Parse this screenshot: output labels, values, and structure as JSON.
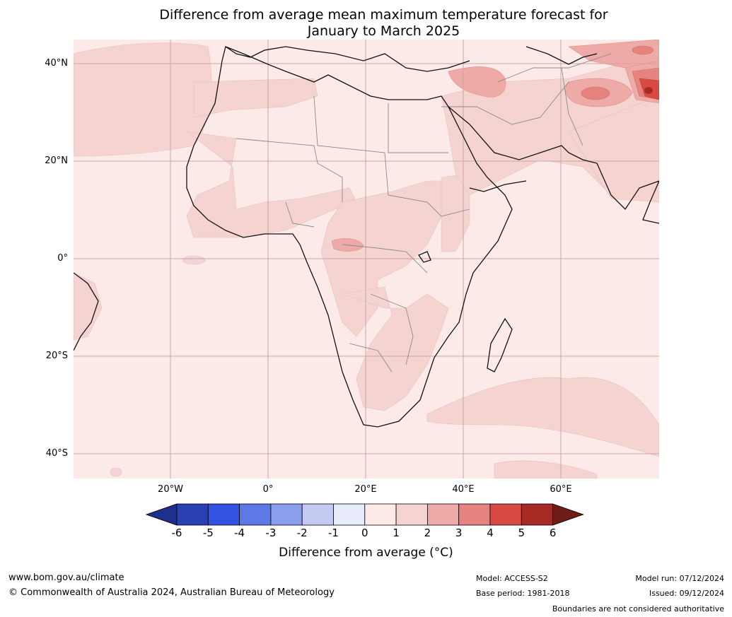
{
  "title": {
    "line1": "Difference from average mean maximum temperature forecast for",
    "line2": "January to March 2025"
  },
  "map": {
    "lat_labels": [
      "40°N",
      "20°N",
      "0°",
      "20°S",
      "40°S"
    ],
    "lon_labels": [
      "20°W",
      "0°",
      "20°E",
      "40°E",
      "60°E"
    ],
    "lat_range": [
      -45,
      45
    ],
    "lon_range": [
      -40,
      80
    ]
  },
  "colorbar": {
    "ticks": [
      "-6",
      "-5",
      "-4",
      "-3",
      "-2",
      "-1",
      "0",
      "1",
      "2",
      "3",
      "4",
      "5",
      "6"
    ],
    "colors": [
      "#1e2f8c",
      "#2a3fb0",
      "#3352df",
      "#5e78e6",
      "#8a9eec",
      "#c3cbf3",
      "#e9ecfb",
      "#fbeae8",
      "#f5d3d0",
      "#edaaa6",
      "#e5847f",
      "#d94b42",
      "#a82a25",
      "#6e1c18"
    ],
    "label": "Difference from average (°C)"
  },
  "footer": {
    "website": "www.bom.gov.au/climate",
    "copyright": "© Commonwealth of Australia 2024, Australian Bureau of Meteorology",
    "model": "Model: ACCESS-S2",
    "base_period": "Base period: 1981-2018",
    "model_run": "Model run: 07/12/2024",
    "issued": "Issued: 09/12/2024",
    "disclaimer": "Boundaries are not considered authoritative"
  }
}
